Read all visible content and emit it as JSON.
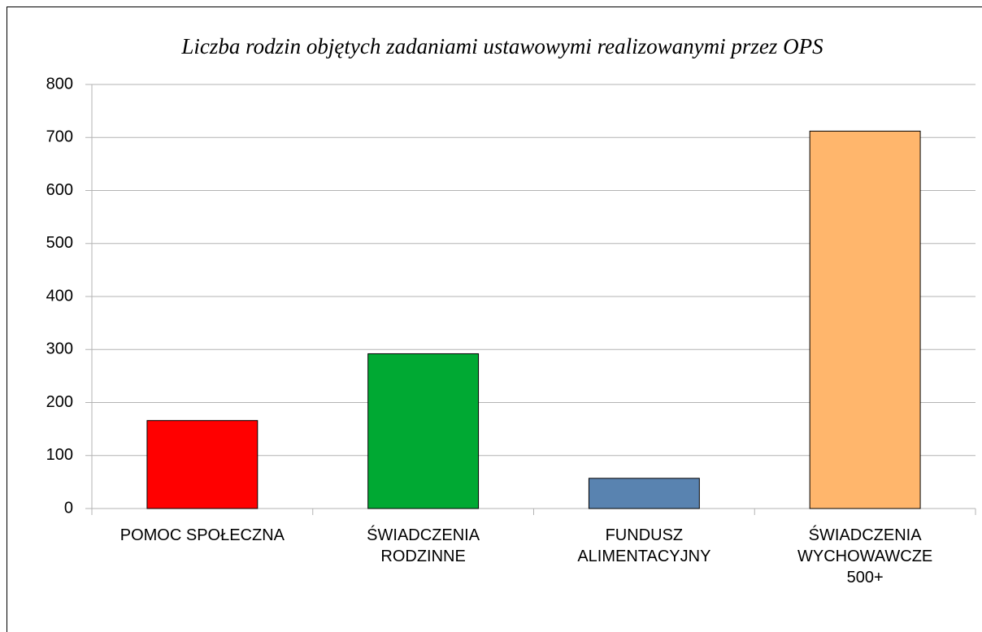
{
  "chart_data": {
    "type": "bar",
    "title": "Liczba rodzin objętych zadaniami ustawowymi realizowanymi przez OPS",
    "categories": [
      "POMOC SPOŁECZNA",
      "ŚWIADCZENIA\nRODZINNE",
      "FUNDUSZ\nALIMENTACYJNY",
      "ŚWIADCZENIA\nWYCHOWAWCZE\n500+"
    ],
    "values": [
      166,
      292,
      57,
      712
    ],
    "colors": [
      "#ff0000",
      "#00a933",
      "#5983b0",
      "#ffb66c"
    ],
    "ylim": [
      0,
      800
    ],
    "yticks": [
      0,
      100,
      200,
      300,
      400,
      500,
      600,
      700,
      800
    ],
    "grid": true
  }
}
